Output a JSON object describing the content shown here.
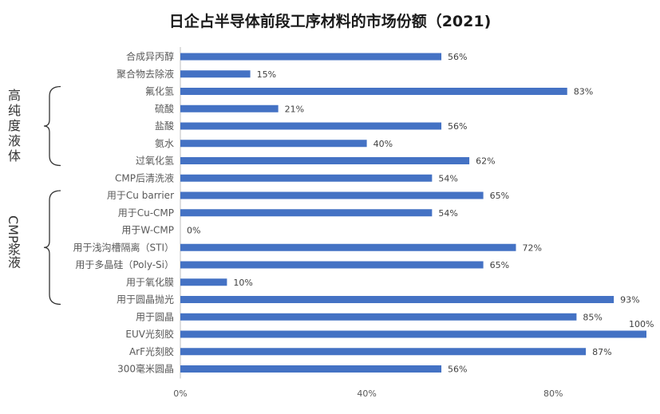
{
  "chart_data": {
    "type": "bar",
    "orientation": "horizontal",
    "title": "日企占半导体前段工序材料的市场份额（2021)",
    "categories": [
      "合成异丙醇",
      "聚合物去除液",
      "氟化氢",
      "硫酸",
      "盐酸",
      "氨水",
      "过氧化氢",
      "CMP后清洗液",
      "用于Cu barrier",
      "用于Cu-CMP",
      "用于W-CMP",
      "用于浅沟槽隔离（STI）",
      "用于多晶硅（Poly-Si）",
      "用于氧化膜",
      "用于圆晶抛光",
      "用于圆晶",
      "EUV光刻胶",
      "ArF光刻胶",
      "300毫米圆晶"
    ],
    "values": [
      56,
      15,
      83,
      21,
      56,
      40,
      62,
      54,
      65,
      54,
      0,
      72,
      65,
      10,
      93,
      85,
      100,
      87,
      56
    ],
    "value_labels": [
      "56%",
      "15%",
      "83%",
      "21%",
      "56%",
      "40%",
      "62%",
      "54%",
      "65%",
      "54%",
      "0%",
      "72%",
      "65%",
      "10%",
      "93%",
      "85%",
      "100%",
      "87%",
      "56%"
    ],
    "xlim": [
      0,
      100
    ],
    "x_ticks": [
      "0%",
      "40%",
      "80%"
    ],
    "x_tick_values": [
      0,
      40,
      80
    ],
    "grid": false,
    "bar_color": "#4472c4",
    "groups": [
      {
        "label": "高纯度液体",
        "from": "氟化氢",
        "to": "过氧化氢"
      },
      {
        "label": "CMP浆液",
        "from": "用于Cu barrier",
        "to": "用于圆晶抛光"
      }
    ]
  }
}
